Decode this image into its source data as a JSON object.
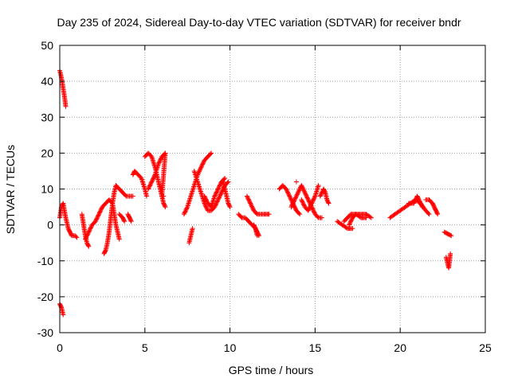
{
  "chart_data": {
    "type": "scatter",
    "title": "Day 235 of 2024, Sidereal Day-to-day VTEC variation (SDTVAR) for receiver bndr",
    "xlabel": "GPS time / hours",
    "ylabel": "SDTVAR / TECUs",
    "xlim": [
      0,
      25
    ],
    "ylim": [
      -30,
      50
    ],
    "x_ticks": [
      0,
      5,
      10,
      15,
      20,
      25
    ],
    "x_tick_labels": [
      "0",
      "5",
      "10",
      "15",
      "20",
      "25"
    ],
    "y_ticks": [
      -30,
      -20,
      -10,
      0,
      10,
      20,
      30,
      40,
      50
    ],
    "y_tick_labels": [
      "-30",
      "-20",
      "-10",
      "0",
      "10",
      "20",
      "30",
      "40",
      "50"
    ],
    "grid": true,
    "marker": "+",
    "marker_color": "#ff0000",
    "segments": [
      [
        [
          0.0,
          43
        ],
        [
          0.1,
          41
        ],
        [
          0.2,
          38
        ],
        [
          0.3,
          35
        ],
        [
          0.35,
          33
        ]
      ],
      [
        [
          0.0,
          -22
        ],
        [
          0.1,
          -23
        ],
        [
          0.15,
          -24
        ],
        [
          0.2,
          -25
        ]
      ],
      [
        [
          0.0,
          2
        ],
        [
          0.1,
          5
        ],
        [
          0.2,
          6
        ],
        [
          0.35,
          2
        ],
        [
          0.5,
          -1
        ],
        [
          0.6,
          -2
        ],
        [
          0.7,
          -3
        ],
        [
          0.9,
          -3
        ],
        [
          1.0,
          -3.5
        ]
      ],
      [
        [
          1.3,
          3
        ],
        [
          1.4,
          0
        ],
        [
          1.5,
          -3
        ],
        [
          1.6,
          -5
        ],
        [
          1.7,
          -6
        ]
      ],
      [
        [
          1.5,
          -4
        ],
        [
          1.7,
          -2
        ],
        [
          1.9,
          0
        ],
        [
          2.1,
          1
        ],
        [
          2.3,
          3
        ],
        [
          2.5,
          5
        ],
        [
          2.7,
          6
        ],
        [
          2.9,
          7
        ],
        [
          3.1,
          6
        ],
        [
          3.2,
          3
        ],
        [
          3.3,
          0
        ],
        [
          3.4,
          -2
        ],
        [
          3.5,
          -4
        ]
      ],
      [
        [
          2.6,
          -8
        ],
        [
          2.7,
          -7
        ],
        [
          2.8,
          -5
        ],
        [
          2.9,
          -2
        ],
        [
          3.0,
          2
        ],
        [
          3.1,
          6
        ],
        [
          3.2,
          9
        ],
        [
          3.3,
          11
        ],
        [
          3.5,
          10
        ],
        [
          3.7,
          9
        ],
        [
          3.9,
          8
        ],
        [
          4.1,
          8
        ],
        [
          4.3,
          8
        ]
      ],
      [
        [
          3.5,
          3
        ],
        [
          3.7,
          2
        ],
        [
          3.8,
          1
        ]
      ],
      [
        [
          4.0,
          3
        ],
        [
          4.1,
          2
        ],
        [
          4.2,
          1
        ]
      ],
      [
        [
          4.3,
          14
        ],
        [
          4.4,
          15
        ],
        [
          4.6,
          14
        ],
        [
          4.8,
          13
        ],
        [
          5.0,
          10
        ],
        [
          5.1,
          8
        ]
      ],
      [
        [
          5.0,
          19
        ],
        [
          5.2,
          20
        ],
        [
          5.4,
          19
        ],
        [
          5.6,
          16
        ],
        [
          5.8,
          12
        ],
        [
          6.0,
          8
        ],
        [
          6.1,
          6
        ],
        [
          6.2,
          5
        ]
      ],
      [
        [
          5.2,
          10
        ],
        [
          5.4,
          12
        ],
        [
          5.6,
          14
        ],
        [
          5.8,
          17
        ],
        [
          6.0,
          19
        ],
        [
          6.2,
          20
        ],
        [
          6.0,
          8
        ],
        [
          6.1,
          8
        ]
      ],
      [
        [
          7.6,
          -5
        ],
        [
          7.7,
          -3
        ],
        [
          7.8,
          -1
        ]
      ],
      [
        [
          7.3,
          3
        ],
        [
          7.5,
          5
        ],
        [
          7.7,
          8
        ],
        [
          7.9,
          11
        ],
        [
          8.1,
          14
        ],
        [
          8.3,
          16
        ],
        [
          8.5,
          18
        ],
        [
          8.7,
          19
        ],
        [
          8.9,
          20
        ]
      ],
      [
        [
          7.9,
          15
        ],
        [
          8.1,
          12
        ],
        [
          8.3,
          9
        ],
        [
          8.5,
          6
        ],
        [
          8.7,
          4
        ],
        [
          8.9,
          4
        ],
        [
          9.1,
          5
        ],
        [
          9.3,
          7
        ],
        [
          9.5,
          9
        ],
        [
          9.7,
          11
        ],
        [
          9.9,
          12
        ]
      ],
      [
        [
          8.5,
          8
        ],
        [
          8.7,
          6
        ],
        [
          8.9,
          5
        ],
        [
          9.1,
          8
        ],
        [
          9.3,
          10
        ],
        [
          9.5,
          12
        ],
        [
          9.7,
          13
        ]
      ],
      [
        [
          9.6,
          12
        ],
        [
          9.7,
          10
        ],
        [
          9.8,
          8
        ],
        [
          9.9,
          6
        ],
        [
          10.0,
          5
        ]
      ],
      [
        [
          10.5,
          3
        ],
        [
          10.7,
          2
        ],
        [
          10.9,
          2
        ],
        [
          11.1,
          1
        ],
        [
          11.3,
          0
        ],
        [
          11.5,
          -1
        ],
        [
          11.6,
          -3
        ]
      ],
      [
        [
          11.0,
          8
        ],
        [
          11.2,
          6
        ],
        [
          11.4,
          4
        ],
        [
          11.6,
          3
        ],
        [
          11.8,
          3
        ],
        [
          12.0,
          3
        ],
        [
          12.3,
          3
        ]
      ],
      [
        [
          11.4,
          0
        ],
        [
          11.5,
          -1
        ],
        [
          11.6,
          -2
        ],
        [
          11.7,
          -3
        ]
      ],
      [
        [
          12.9,
          10
        ],
        [
          13.1,
          11
        ],
        [
          13.3,
          10
        ],
        [
          13.5,
          8
        ],
        [
          13.7,
          6
        ],
        [
          13.9,
          4
        ],
        [
          14.1,
          3
        ]
      ],
      [
        [
          13.9,
          12
        ]
      ],
      [
        [
          13.6,
          5
        ],
        [
          13.8,
          7
        ],
        [
          14.0,
          9
        ],
        [
          14.2,
          11
        ],
        [
          14.4,
          9
        ],
        [
          14.6,
          7
        ],
        [
          14.8,
          5
        ],
        [
          15.0,
          3
        ],
        [
          15.2,
          2
        ],
        [
          15.4,
          2
        ]
      ],
      [
        [
          14.2,
          7
        ],
        [
          14.4,
          5
        ],
        [
          14.6,
          4
        ],
        [
          14.8,
          6
        ],
        [
          15.0,
          8
        ],
        [
          15.2,
          11
        ]
      ],
      [
        [
          15.3,
          8
        ],
        [
          15.5,
          10
        ],
        [
          15.6,
          9
        ],
        [
          15.7,
          7
        ],
        [
          15.8,
          6
        ]
      ],
      [
        [
          16.3,
          1
        ],
        [
          16.6,
          0
        ],
        [
          16.9,
          -1
        ],
        [
          17.2,
          -1
        ]
      ],
      [
        [
          16.7,
          1
        ],
        [
          16.9,
          2
        ],
        [
          17.1,
          3
        ],
        [
          17.4,
          3
        ],
        [
          17.7,
          3
        ],
        [
          18.0,
          3
        ],
        [
          18.3,
          2
        ]
      ],
      [
        [
          17.0,
          0
        ],
        [
          17.2,
          2
        ],
        [
          17.4,
          3
        ],
        [
          17.7,
          2
        ],
        [
          18.0,
          2
        ]
      ],
      [
        [
          19.4,
          2
        ],
        [
          19.7,
          3
        ],
        [
          20.0,
          4
        ],
        [
          20.3,
          5
        ],
        [
          20.6,
          6
        ],
        [
          20.9,
          7
        ],
        [
          21.2,
          6
        ],
        [
          21.5,
          4
        ],
        [
          21.7,
          3
        ]
      ],
      [
        [
          20.5,
          6
        ],
        [
          20.8,
          6
        ],
        [
          21.0,
          8
        ],
        [
          21.1,
          7
        ],
        [
          21.3,
          5
        ]
      ],
      [
        [
          21.5,
          7
        ],
        [
          21.7,
          7
        ],
        [
          21.9,
          6
        ],
        [
          22.0,
          5
        ],
        [
          22.1,
          4
        ],
        [
          22.2,
          3
        ]
      ],
      [
        [
          22.6,
          -2
        ],
        [
          22.8,
          -2.5
        ],
        [
          23.0,
          -3
        ]
      ],
      [
        [
          22.7,
          -9
        ],
        [
          22.75,
          -10
        ],
        [
          22.8,
          -11
        ],
        [
          22.85,
          -12
        ],
        [
          22.9,
          -10
        ],
        [
          22.95,
          -8
        ]
      ]
    ]
  }
}
